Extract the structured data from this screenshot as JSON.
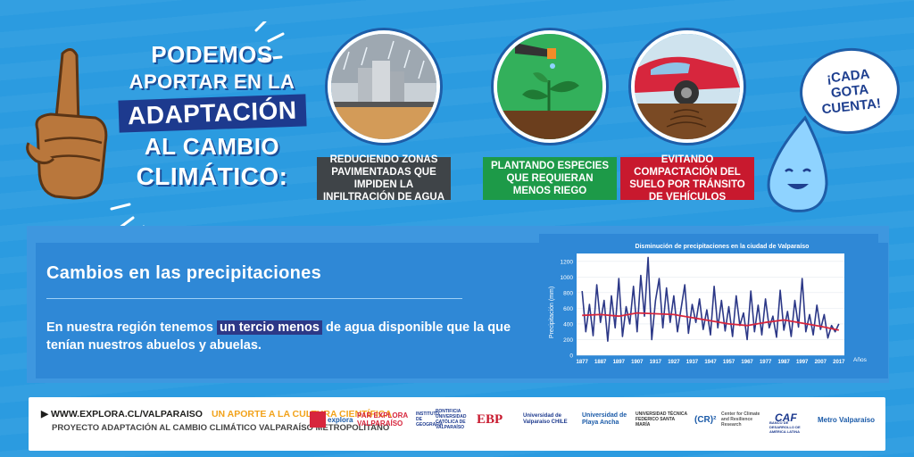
{
  "headline": {
    "line1": "PODEMOS",
    "line2": "APORTAR EN LA",
    "line3": "ADAPTACIÓN",
    "line4": "AL CAMBIO",
    "line5": "CLIMÁTICO:"
  },
  "actions": [
    {
      "label": "REDUCIENDO ZONAS PAVIMENTADAS QUE IMPIDEN LA INFILTRACIÓN DE AGUA",
      "color": "#3f4448"
    },
    {
      "label": "PLANTANDO ESPECIES QUE REQUIERAN MENOS RIEGO",
      "color": "#1d9a48"
    },
    {
      "label": "EVITANDO COMPACTACIÓN DEL SUELO POR TRÁNSITO DE VEHÍCULOS",
      "color": "#c8192e"
    }
  ],
  "bubble": {
    "line1": "¡CADA",
    "line2": "GOTA",
    "line3": "CUENTA!"
  },
  "section": {
    "title": "Cambios en las precipitaciones",
    "text_before": "En nuestra región tenemos ",
    "text_highlight": "un tercio menos",
    "text_after": " de agua disponible que la que tenían nuestros abuelos y abuelas."
  },
  "chart_data": {
    "type": "line",
    "title": "Disminución de precipitaciones en la ciudad de Valparaíso",
    "ylabel": "Precipitación (mm)",
    "xlabel": "Años",
    "ylim": [
      0,
      1300
    ],
    "yticks": [
      0,
      200,
      400,
      600,
      800,
      1000,
      1200
    ],
    "xticks": [
      "1877",
      "1887",
      "1897",
      "1907",
      "1917",
      "1927",
      "1937",
      "1947",
      "1957",
      "1967",
      "1977",
      "1987",
      "1997",
      "2007",
      "2017"
    ],
    "series": [
      {
        "color": "#2c3887",
        "x": [
          1877,
          1879,
          1881,
          1883,
          1885,
          1887,
          1889,
          1891,
          1893,
          1895,
          1897,
          1899,
          1901,
          1903,
          1905,
          1907,
          1909,
          1911,
          1913,
          1915,
          1917,
          1919,
          1921,
          1923,
          1925,
          1927,
          1929,
          1931,
          1933,
          1935,
          1937,
          1939,
          1941,
          1943,
          1945,
          1947,
          1949,
          1951,
          1953,
          1955,
          1957,
          1959,
          1961,
          1963,
          1965,
          1967,
          1969,
          1971,
          1973,
          1975,
          1977,
          1979,
          1981,
          1983,
          1985,
          1987,
          1989,
          1991,
          1993,
          1995,
          1997,
          1999,
          2001,
          2003,
          2005,
          2007,
          2009,
          2011,
          2013,
          2015,
          2017
        ],
        "values": [
          820,
          300,
          650,
          250,
          900,
          420,
          700,
          180,
          760,
          350,
          980,
          240,
          620,
          400,
          880,
          300,
          1020,
          500,
          1250,
          200,
          700,
          980,
          350,
          860,
          420,
          760,
          300,
          600,
          900,
          280,
          650,
          420,
          720,
          330,
          580,
          260,
          880,
          350,
          700,
          310,
          620,
          240,
          760,
          380,
          540,
          200,
          820,
          300,
          640,
          260,
          720,
          350,
          500,
          230,
          830,
          320,
          560,
          240,
          700,
          360,
          980,
          300,
          520,
          260,
          640,
          330,
          520,
          220,
          380,
          300,
          400
        ]
      },
      {
        "color": "#d7263d",
        "x": [
          1877,
          1887,
          1897,
          1907,
          1917,
          1927,
          1937,
          1947,
          1957,
          1967,
          1977,
          1987,
          1997,
          2007,
          2017
        ],
        "values": [
          510,
          520,
          500,
          540,
          530,
          520,
          480,
          440,
          400,
          380,
          420,
          450,
          410,
          370,
          320
        ]
      }
    ]
  },
  "footer": {
    "url": "WWW.EXPLORA.CL/VALPARAISO",
    "tagline": "UN APORTE A LA CULTURA CIENTÍFICA",
    "project": "PROYECTO ADAPTACIÓN AL CAMBIO CLIMÁTICO VALPARAÍSO METROPOLITANO",
    "logos": [
      "explora",
      "PAR EXPLORA VALPARAÍSO",
      "INSTITUTO DE GEOGRAFÍA",
      "PONTIFICIA UNIVERSIDAD CATÓLICA DE VALPARAÍSO",
      "EBP",
      "Universidad de Valparaíso CHILE",
      "Universidad de Playa Ancha",
      "UNIVERSIDAD TÉCNICA FEDERICO SANTA MARÍA",
      "(CR)²",
      "Center for Climate and Resilience Research",
      "CAF",
      "BANCO DE DESARROLLO DE AMÉRICA LATINA",
      "Metro Valparaíso"
    ]
  }
}
